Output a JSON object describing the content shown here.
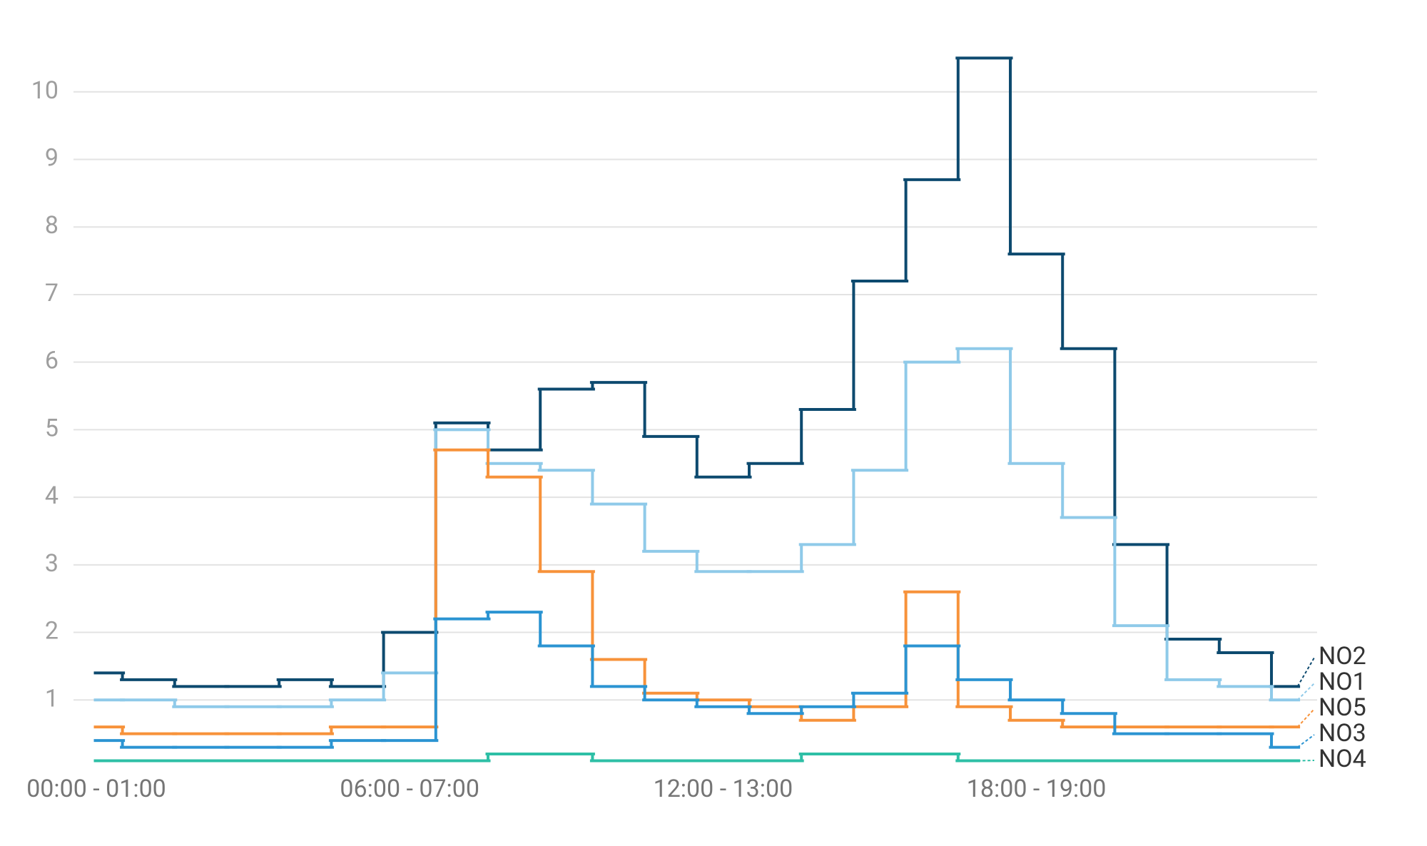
{
  "chart_data": {
    "type": "step-line",
    "categories": [
      "00:00 - 01:00",
      null,
      null,
      null,
      null,
      null,
      "06:00 - 07:00",
      null,
      null,
      null,
      null,
      null,
      "12:00 - 13:00",
      null,
      null,
      null,
      null,
      null,
      "18:00 - 19:00",
      null,
      null,
      null,
      null,
      null
    ],
    "series": [
      {
        "name": "NO2",
        "color": "#0d4a6f",
        "values": [
          1.4,
          1.3,
          1.2,
          1.2,
          1.3,
          1.2,
          2.0,
          5.1,
          4.7,
          5.6,
          5.7,
          4.9,
          4.3,
          4.5,
          5.3,
          7.2,
          8.7,
          10.5,
          7.6,
          6.2,
          3.3,
          1.9,
          1.7,
          1.2
        ]
      },
      {
        "name": "NO1",
        "color": "#8fcae9",
        "values": [
          1.0,
          1.0,
          0.9,
          0.9,
          0.9,
          1.0,
          1.4,
          5.0,
          4.5,
          4.4,
          3.9,
          3.2,
          2.9,
          2.9,
          3.3,
          4.4,
          6.0,
          6.2,
          4.5,
          3.7,
          2.1,
          1.3,
          1.2,
          1.0
        ]
      },
      {
        "name": "NO5",
        "color": "#f7923a",
        "values": [
          0.6,
          0.5,
          0.5,
          0.5,
          0.5,
          0.6,
          0.6,
          4.7,
          4.3,
          2.9,
          1.6,
          1.1,
          1.0,
          0.9,
          0.7,
          0.9,
          2.6,
          0.9,
          0.7,
          0.6,
          0.6,
          0.6,
          0.6,
          0.6
        ]
      },
      {
        "name": "NO3",
        "color": "#2b94d2",
        "values": [
          0.4,
          0.3,
          0.3,
          0.3,
          0.3,
          0.4,
          0.4,
          2.2,
          2.3,
          1.8,
          1.2,
          1.0,
          0.9,
          0.8,
          0.9,
          1.1,
          1.8,
          1.3,
          1.0,
          0.8,
          0.5,
          0.5,
          0.5,
          0.3
        ]
      },
      {
        "name": "NO4",
        "color": "#2ebfa6",
        "values": [
          0.1,
          0.1,
          0.1,
          0.1,
          0.1,
          0.1,
          0.1,
          0.1,
          0.2,
          0.2,
          0.1,
          0.1,
          0.1,
          0.1,
          0.2,
          0.2,
          0.2,
          0.1,
          0.1,
          0.1,
          0.1,
          0.1,
          0.1,
          0.1
        ]
      }
    ],
    "ylim": [
      0,
      10.8
    ],
    "yticks": [
      1,
      2,
      3,
      4,
      5,
      6,
      7,
      8,
      9,
      10
    ],
    "grid": true
  }
}
